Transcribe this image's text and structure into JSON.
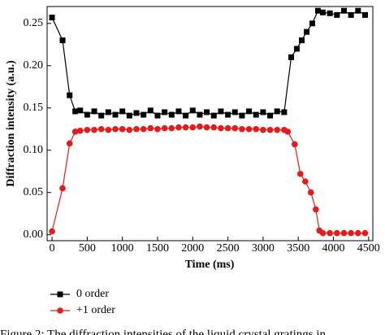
{
  "chart_data": {
    "type": "line",
    "x_label": "Time (ms)",
    "y_label": "Diffraction intensity (a.u.)",
    "caption": "Figure 2: The diffraction intensities of the liquid crystal gratings in",
    "xlim": [
      -70,
      4560
    ],
    "ylim": [
      -0.007,
      0.27
    ],
    "xticks": [
      0,
      500,
      1000,
      1500,
      2000,
      2500,
      3000,
      3500,
      4000,
      4500
    ],
    "yticks": [
      {
        "value": 0,
        "label": "0.00"
      },
      {
        "value": 0.05,
        "label": "0.05"
      },
      {
        "value": 0.1,
        "label": "0.10"
      },
      {
        "value": 0.15,
        "label": "0.15"
      },
      {
        "value": 0.2,
        "label": "0.20"
      },
      {
        "value": 0.25,
        "label": "0.25"
      }
    ],
    "legend": "bottom-left",
    "series": [
      {
        "name": "0 order",
        "color": "#000000",
        "marker": "square",
        "x": [
          0,
          150,
          250,
          330,
          400,
          500,
          600,
          700,
          800,
          900,
          1000,
          1100,
          1200,
          1300,
          1400,
          1500,
          1600,
          1700,
          1800,
          1900,
          2000,
          2100,
          2200,
          2300,
          2400,
          2500,
          2600,
          2700,
          2800,
          2900,
          3000,
          3100,
          3200,
          3300,
          3400,
          3480,
          3550,
          3620,
          3700,
          3780,
          3850,
          3950,
          4050,
          4150,
          4250,
          4350,
          4450
        ],
        "values": [
          0.257,
          0.23,
          0.165,
          0.146,
          0.147,
          0.142,
          0.146,
          0.141,
          0.145,
          0.142,
          0.146,
          0.141,
          0.144,
          0.142,
          0.147,
          0.141,
          0.145,
          0.142,
          0.146,
          0.141,
          0.147,
          0.142,
          0.145,
          0.141,
          0.146,
          0.142,
          0.145,
          0.141,
          0.146,
          0.142,
          0.145,
          0.141,
          0.146,
          0.145,
          0.21,
          0.22,
          0.23,
          0.24,
          0.25,
          0.265,
          0.263,
          0.262,
          0.26,
          0.265,
          0.26,
          0.265,
          0.26
        ]
      },
      {
        "name": "+1 order",
        "color": "#e41a1c",
        "marker": "circle",
        "x": [
          0,
          150,
          250,
          330,
          400,
          500,
          600,
          700,
          800,
          900,
          1000,
          1100,
          1200,
          1300,
          1400,
          1500,
          1600,
          1700,
          1800,
          1900,
          2000,
          2100,
          2200,
          2300,
          2400,
          2500,
          2600,
          2700,
          2800,
          2900,
          3000,
          3100,
          3200,
          3300,
          3350,
          3450,
          3530,
          3600,
          3680,
          3750,
          3800,
          3850,
          3950,
          4050,
          4150,
          4250,
          4350,
          4450
        ],
        "values": [
          0.004,
          0.055,
          0.108,
          0.122,
          0.123,
          0.124,
          0.124,
          0.125,
          0.124,
          0.125,
          0.125,
          0.124,
          0.125,
          0.125,
          0.126,
          0.125,
          0.126,
          0.126,
          0.127,
          0.127,
          0.127,
          0.128,
          0.127,
          0.127,
          0.126,
          0.126,
          0.126,
          0.125,
          0.125,
          0.125,
          0.124,
          0.124,
          0.124,
          0.124,
          0.122,
          0.107,
          0.072,
          0.063,
          0.05,
          0.03,
          0.005,
          0.002,
          0.002,
          0.002,
          0.002,
          0.002,
          0.002,
          0.002
        ]
      }
    ]
  }
}
